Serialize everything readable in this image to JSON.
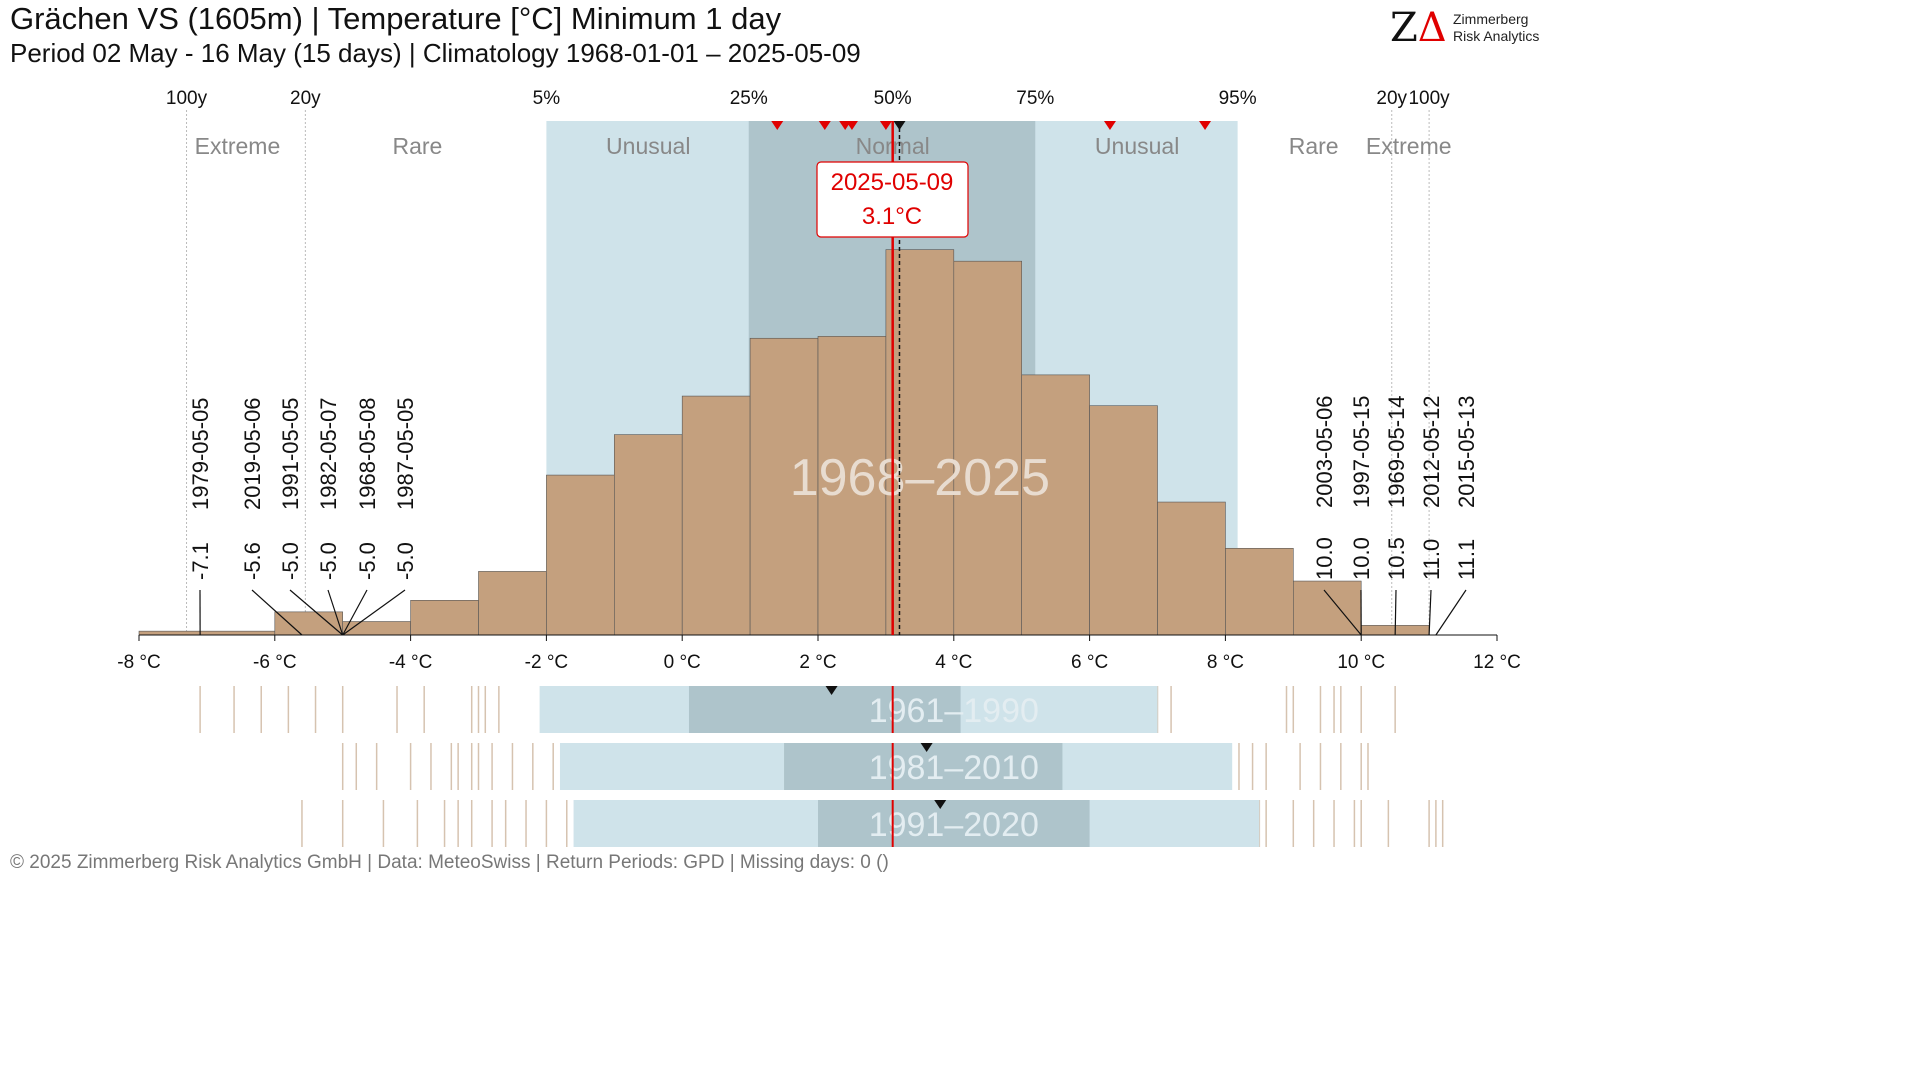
{
  "header": {
    "title": "Grächen  VS (1605m) | Temperature [°C] Minimum 1 day",
    "subtitle": "Period 02 May - 16 May (15 days) | Climatology 1968-01-01 – 2025-05-09"
  },
  "logo": {
    "mark_z": "Z",
    "mark_delta": "Δ",
    "line1": "Zimmerberg",
    "line2": "Risk Analytics"
  },
  "footer": "©  2025 Zimmerberg Risk Analytics GmbH | Data: MeteoSwiss | Return Periods: GPD | Missing days: 0 ()",
  "colors": {
    "histogram": "#c4a07e",
    "band_outer": "#cfe3ea",
    "band_inner": "#aec4cb",
    "current_line": "#e00000",
    "strip_line": "#d6c3b0",
    "label_text": "#888888"
  },
  "chart_data": {
    "type": "histogram",
    "title": "",
    "xlabel": "",
    "ylabel": "",
    "xlim": [
      -8,
      12
    ],
    "x_ticks": [
      {
        "value": -8,
        "label": "-8 °C"
      },
      {
        "value": -6,
        "label": "-6 °C"
      },
      {
        "value": -4,
        "label": "-4 °C"
      },
      {
        "value": -2,
        "label": "-2 °C"
      },
      {
        "value": 0,
        "label": "0 °C"
      },
      {
        "value": 2,
        "label": "2 °C"
      },
      {
        "value": 4,
        "label": "4 °C"
      },
      {
        "value": 6,
        "label": "6 °C"
      },
      {
        "value": 8,
        "label": "8 °C"
      },
      {
        "value": 10,
        "label": "10 °C"
      },
      {
        "value": 12,
        "label": "12 °C"
      }
    ],
    "bins": [
      {
        "x0": -8,
        "x1": -6,
        "count": 2
      },
      {
        "x0": -6,
        "x1": -5,
        "count": 12
      },
      {
        "x0": -5,
        "x1": -4,
        "count": 7
      },
      {
        "x0": -4,
        "x1": -3,
        "count": 18
      },
      {
        "x0": -3,
        "x1": -2,
        "count": 33
      },
      {
        "x0": -2,
        "x1": -1,
        "count": 83
      },
      {
        "x0": -1,
        "x1": 0,
        "count": 104
      },
      {
        "x0": 0,
        "x1": 1,
        "count": 124
      },
      {
        "x0": 1,
        "x1": 2,
        "count": 154
      },
      {
        "x0": 2,
        "x1": 3,
        "count": 155
      },
      {
        "x0": 3,
        "x1": 4,
        "count": 200
      },
      {
        "x0": 4,
        "x1": 5,
        "count": 194
      },
      {
        "x0": 5,
        "x1": 6,
        "count": 135
      },
      {
        "x0": 6,
        "x1": 7,
        "count": 119
      },
      {
        "x0": 7,
        "x1": 8,
        "count": 69
      },
      {
        "x0": 8,
        "x1": 9,
        "count": 45
      },
      {
        "x0": 9,
        "x1": 10,
        "count": 28
      },
      {
        "x0": 10,
        "x1": 11,
        "count": 5
      }
    ],
    "ymax": 205,
    "percentile_axis": [
      {
        "label": "100y",
        "value": -7.3,
        "guide": true
      },
      {
        "label": "20y",
        "value": -5.55,
        "guide": true
      },
      {
        "label": "5%",
        "value": -2.0,
        "guide": false
      },
      {
        "label": "25%",
        "value": 0.98,
        "guide": false
      },
      {
        "label": "50%",
        "value": 3.1,
        "guide": false
      },
      {
        "label": "75%",
        "value": 5.2,
        "guide": false
      },
      {
        "label": "95%",
        "value": 8.18,
        "guide": false
      },
      {
        "label": "20y",
        "value": 10.45,
        "guide": true
      },
      {
        "label": "100y",
        "value": 11.0,
        "guide": true
      }
    ],
    "bands": {
      "p5": -2.0,
      "p25": 0.98,
      "p75": 5.2,
      "p95": 8.18
    },
    "zone_labels": [
      {
        "label": "Extreme",
        "x": -6.55
      },
      {
        "label": "Rare",
        "x": -3.9
      },
      {
        "label": "Unusual",
        "x": -0.5
      },
      {
        "label": "Normal",
        "x": 3.1
      },
      {
        "label": "Unusual",
        "x": 6.7
      },
      {
        "label": "Rare",
        "x": 9.3
      },
      {
        "label": "Extreme",
        "x": 10.7
      }
    ],
    "watermark": "1968–2025",
    "current": {
      "date": "2025-05-09",
      "value": 3.1,
      "value_label": "3.1°C"
    },
    "median": 3.2,
    "recent_markers": [
      1.4,
      2.1,
      2.4,
      2.5,
      3.0,
      6.3,
      7.7
    ],
    "extremes_low": [
      {
        "date": "1979-05-05",
        "value": -7.1,
        "label": "-7.1"
      },
      {
        "date": "2019-05-06",
        "value": -5.6,
        "label": "-5.6"
      },
      {
        "date": "1991-05-05",
        "value": -5.0,
        "label": "-5.0"
      },
      {
        "date": "1982-05-07",
        "value": -5.0,
        "label": "-5.0"
      },
      {
        "date": "1968-05-08",
        "value": -5.0,
        "label": "-5.0"
      },
      {
        "date": "1987-05-05",
        "value": -5.0,
        "label": "-5.0"
      }
    ],
    "extremes_high": [
      {
        "date": "2003-05-06",
        "value": 10.0,
        "label": "10.0"
      },
      {
        "date": "1997-05-15",
        "value": 10.0,
        "label": "10.0"
      },
      {
        "date": "1969-05-14",
        "value": 10.5,
        "label": "10.5"
      },
      {
        "date": "2012-05-12",
        "value": 11.0,
        "label": "11.0"
      },
      {
        "date": "2015-05-13",
        "value": 11.1,
        "label": "11.1"
      }
    ],
    "normals": [
      {
        "label": "1961–1990",
        "p5": -2.1,
        "p25": 0.1,
        "p75": 4.1,
        "p95": 7.0,
        "median": 2.2,
        "low_ticks": [
          -7.1,
          -6.6,
          -6.2,
          -5.8,
          -5.4,
          -5.0,
          -4.2,
          -3.8,
          -3.1,
          -3.0,
          -2.9,
          -2.7
        ],
        "high_ticks": [
          7.0,
          7.2,
          8.9,
          9.0,
          9.4,
          9.6,
          9.7,
          10.0,
          10.5
        ]
      },
      {
        "label": "1981–2010",
        "p5": -1.8,
        "p25": 1.5,
        "p75": 5.6,
        "p95": 8.1,
        "median": 3.6,
        "low_ticks": [
          -5.0,
          -4.8,
          -4.5,
          -4.0,
          -3.7,
          -3.4,
          -3.3,
          -3.1,
          -3.0,
          -2.8,
          -2.5,
          -2.2,
          -1.9
        ],
        "high_ticks": [
          8.2,
          8.4,
          8.6,
          9.1,
          9.4,
          9.7,
          10.0,
          10.1
        ]
      },
      {
        "label": "1991–2020",
        "p5": -1.6,
        "p25": 2.0,
        "p75": 6.0,
        "p95": 8.5,
        "median": 3.8,
        "low_ticks": [
          -5.6,
          -5.0,
          -4.4,
          -3.9,
          -3.5,
          -3.3,
          -3.1,
          -2.8,
          -2.6,
          -2.3,
          -2.0,
          -1.7
        ],
        "high_ticks": [
          8.5,
          8.6,
          9.0,
          9.3,
          9.6,
          9.9,
          10.0,
          10.4,
          11.0,
          11.1,
          11.2
        ]
      }
    ]
  }
}
